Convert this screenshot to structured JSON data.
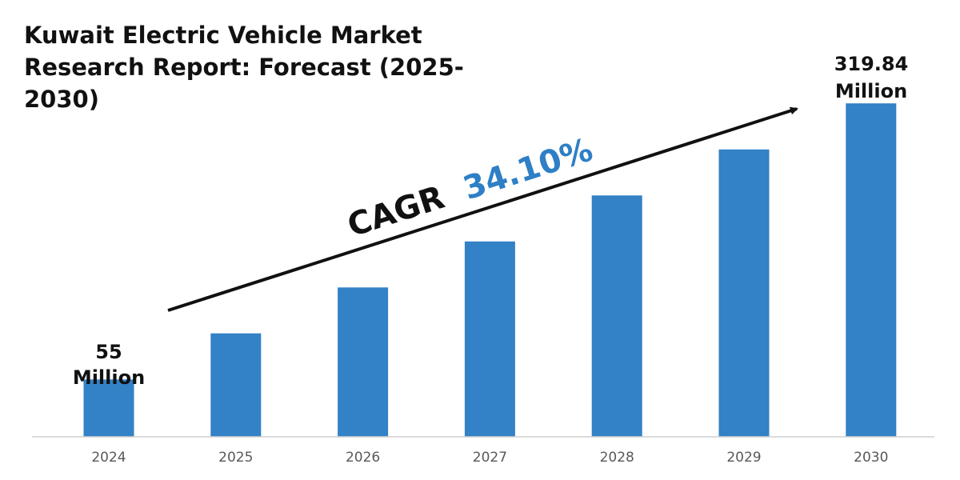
{
  "colors": {
    "bar": "#3381c6",
    "text": "#111111",
    "axis": "#d0d0d0",
    "accent": "#2e7fc5"
  },
  "chart_data": {
    "type": "bar",
    "title": "Kuwait Electric Vehicle Market Research Report: Forecast (2025-2030)",
    "categories": [
      "2024",
      "2025",
      "2026",
      "2027",
      "2028",
      "2029",
      "2030"
    ],
    "values": [
      55,
      99.2,
      143.3,
      187.4,
      231.5,
      275.7,
      319.84
    ],
    "unit": "Million",
    "ylim": [
      0,
      330
    ],
    "grid": false,
    "legend": "none",
    "annotations": {
      "first_value": "55",
      "first_unit": "Million",
      "last_value": "319.84",
      "last_unit": "Million",
      "cagr_label": "CAGR",
      "cagr_value": "34.10%"
    }
  }
}
